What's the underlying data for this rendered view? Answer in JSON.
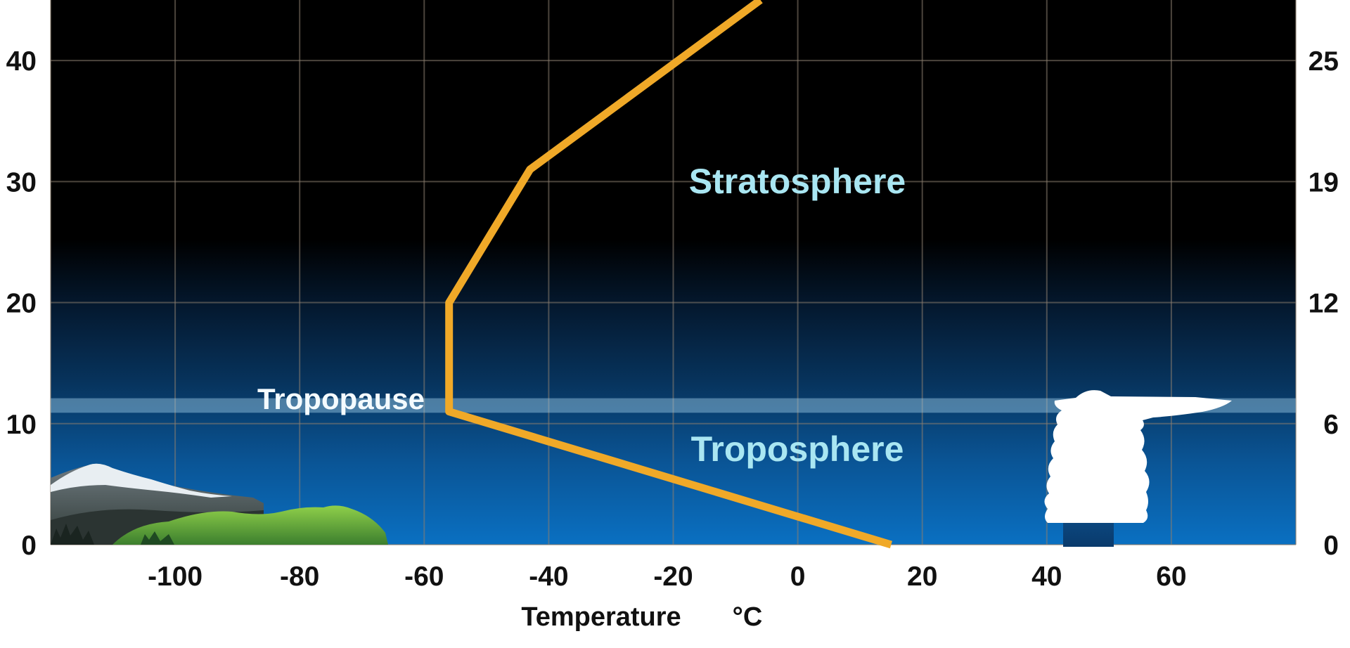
{
  "chart_data": {
    "type": "line",
    "title": "",
    "xlabel": "Temperature",
    "xunit": "°C",
    "ylabel": "",
    "xlim": [
      -120,
      80
    ],
    "ylim": [
      0,
      45
    ],
    "x_ticks": [
      "-100",
      "-80",
      "-60",
      "-40",
      "-20",
      "0",
      "20",
      "40",
      "60"
    ],
    "y_ticks_left": [
      "0",
      "10",
      "20",
      "30",
      "40"
    ],
    "y_ticks_right": [
      "0",
      "6",
      "12",
      "19",
      "25"
    ],
    "grid": true,
    "series": [
      {
        "points": [
          {
            "x": 15,
            "y": 0
          },
          {
            "x": -56,
            "y": 11
          },
          {
            "x": -56,
            "y": 20
          },
          {
            "x": -43,
            "y": 31
          },
          {
            "x": -6,
            "y": 45
          }
        ]
      }
    ],
    "annotations": {
      "stratosphere": "Stratosphere",
      "troposphere": "Troposphere",
      "tropopause": "Tropopause"
    },
    "tropopause_altitude": 11.5,
    "colors": {
      "line": "#f0a928",
      "sky_top": "#000000",
      "sky_bottom": "#0a6fc0",
      "grid": "#8a7d70",
      "layer_label": "#a9e6f2",
      "tropopause_band": "#9fcfe8"
    },
    "icons": [
      "mountains-icon",
      "thunderstorm-cloud-icon"
    ]
  }
}
